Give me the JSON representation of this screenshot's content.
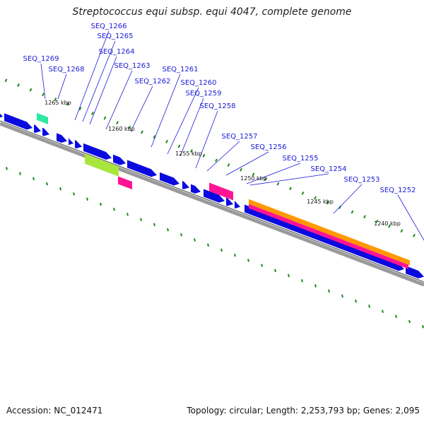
{
  "title": "Streptococcus equi subsp. equi 4047, complete genome",
  "accession": "Accession: NC_012471",
  "topology": "Topology: circular; Length: 2,253,793 bp; Genes: 2,095",
  "colors": {
    "cds": "#0a0ae0",
    "backbone": "#8a8a8a",
    "label": "#1a1ad6",
    "tick": "#1a8a1a",
    "rna": "#ff1493",
    "tan": "#a8e63c",
    "orange": "#ff9900",
    "teal": "#2ee8a0"
  },
  "gene_labels": [
    "SEQ_1269",
    "SEQ_1268",
    "SEQ_1266",
    "SEQ_1265",
    "SEQ_1264",
    "SEQ_1263",
    "SEQ_1262",
    "SEQ_1261",
    "SEQ_1260",
    "SEQ_1259",
    "SEQ_1258",
    "SEQ_1257",
    "SEQ_1256",
    "SEQ_1255",
    "SEQ_1254",
    "SEQ_1253",
    "SEQ_1252"
  ],
  "tick_labels": [
    "1265 kbp",
    "1260 kbp",
    "1255 kbp",
    "1250 kbp",
    "1245 kbp",
    "1240 kbp"
  ]
}
